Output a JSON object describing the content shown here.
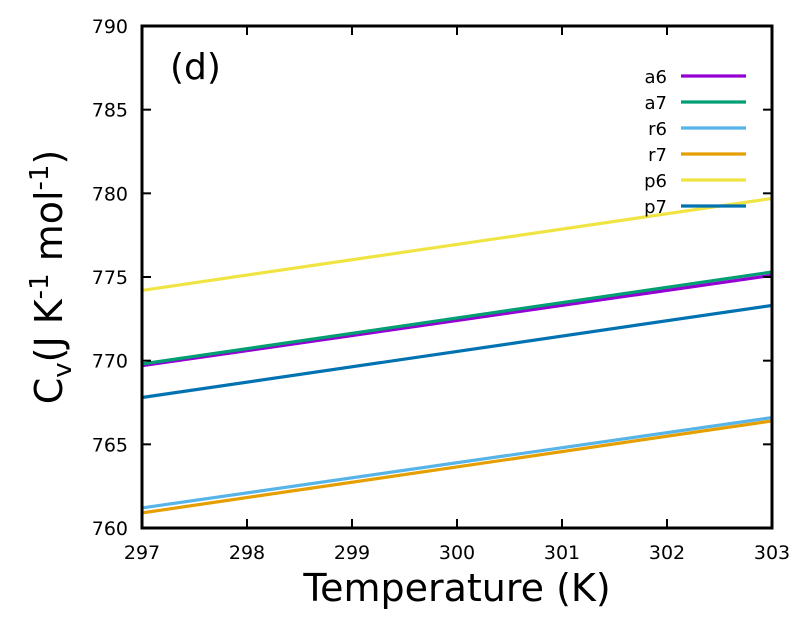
{
  "chart_data": {
    "type": "line",
    "panel_label": "(d)",
    "xlabel": "Temperature (K)",
    "ylabel": {
      "base": "C",
      "sub": "v",
      "part1": "(J K",
      "sup1": "-1",
      "part2": " mol",
      "sup2": "-1",
      "part3": ")"
    },
    "xlim": [
      297,
      303
    ],
    "ylim": [
      760,
      790
    ],
    "xticks": [
      297,
      298,
      299,
      300,
      301,
      302,
      303
    ],
    "yticks": [
      760,
      765,
      770,
      775,
      780,
      785,
      790
    ],
    "grid": false,
    "legend_position": "top-right",
    "series": [
      {
        "name": "a6",
        "color": "#9400D3",
        "x": [
          297,
          303
        ],
        "y": [
          769.7,
          775.1
        ]
      },
      {
        "name": "a7",
        "color": "#009E73",
        "x": [
          297,
          303
        ],
        "y": [
          769.8,
          775.3
        ]
      },
      {
        "name": "r6",
        "color": "#56B4E9",
        "x": [
          297,
          303
        ],
        "y": [
          761.2,
          766.6
        ]
      },
      {
        "name": "r7",
        "color": "#E69F00",
        "x": [
          297,
          303
        ],
        "y": [
          760.9,
          766.4
        ]
      },
      {
        "name": "p6",
        "color": "#F0E442",
        "x": [
          297,
          303
        ],
        "y": [
          774.2,
          779.7
        ]
      },
      {
        "name": "p7",
        "color": "#0072B2",
        "x": [
          297,
          303
        ],
        "y": [
          767.8,
          773.3
        ]
      }
    ]
  }
}
